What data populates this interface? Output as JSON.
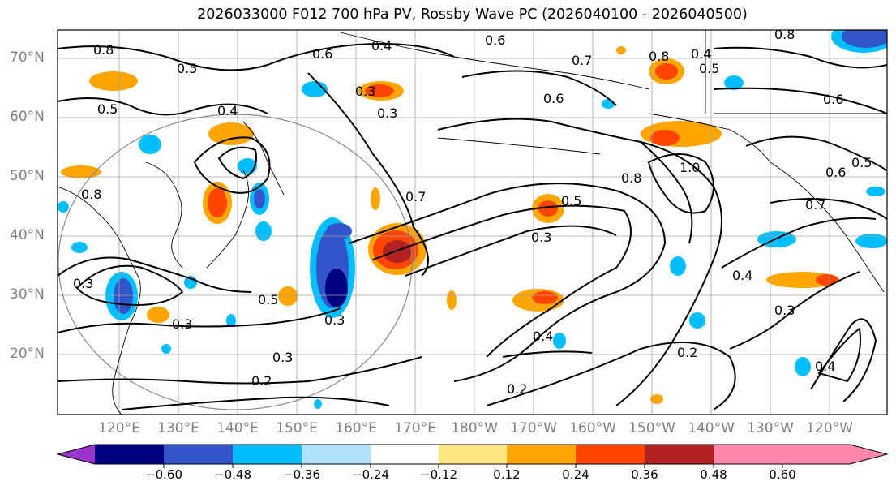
{
  "title": "2026033000 F012 700 hPa PV, Rossby Wave PC (2026040100 - 2026040500)",
  "lat_labels": [
    "70°N",
    "60°N",
    "50°N",
    "40°N",
    "30°N",
    "20°N"
  ],
  "lon_labels": [
    "120°E",
    "130°E",
    "140°E",
    "150°E",
    "160°E",
    "170°E",
    "180°W",
    "170°W",
    "160°W",
    "150°W",
    "140°W",
    "130°W",
    "120°W"
  ],
  "colorbar": {
    "ticks": [
      "−0.60",
      "−0.48",
      "−0.36",
      "−0.24",
      "−0.12",
      "0.12",
      "0.24",
      "0.36",
      "0.48",
      "0.60"
    ],
    "colors": [
      "#9933cc",
      "#000080",
      "#3355cc",
      "#00bfff",
      "#b0e0ff",
      "#ffffff",
      "#ffe680",
      "#ffa500",
      "#ff4500",
      "#b22222",
      "#ff88aa"
    ]
  },
  "contour_labels": [
    "0.8",
    "0.5",
    "0.6",
    "0.4",
    "0.8",
    "0.4",
    "0.3",
    "0.7",
    "0.6",
    "0.6",
    "0.4",
    "0.3",
    "0.5",
    "0.6",
    "1.0",
    "0.8",
    "0.7",
    "0.5",
    "0.3",
    "0.3",
    "0.5",
    "0.4",
    "0.2",
    "0.3",
    "0.2",
    "0.2",
    "0.7",
    "0.6",
    "0.8",
    "0.5",
    "0.4",
    "0.3",
    "0.3",
    "0.4",
    "0.8",
    "0.5",
    "0.3"
  ]
}
